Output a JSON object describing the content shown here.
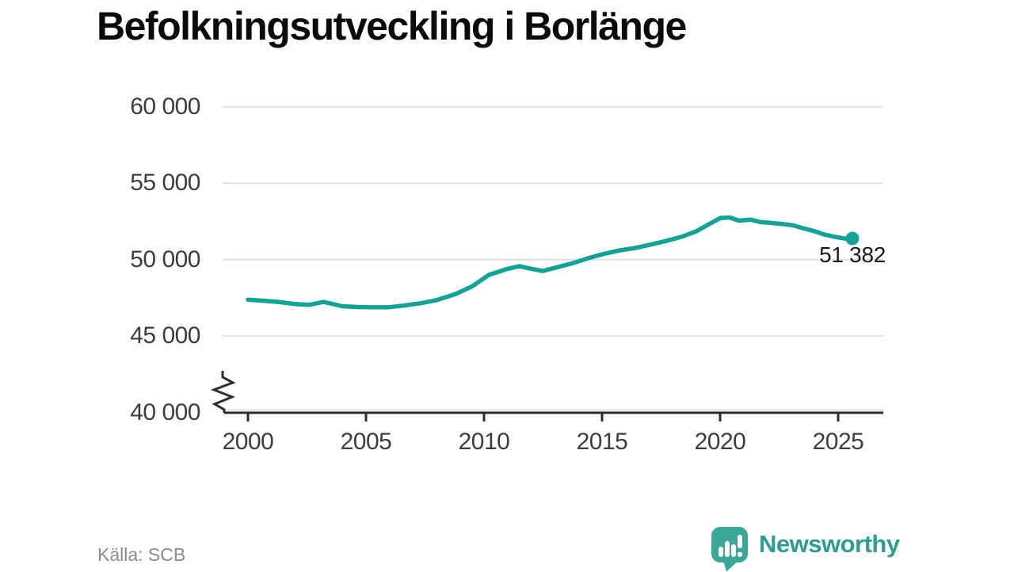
{
  "title": "Befolkningsutveckling i Borlänge",
  "source": "Källa: SCB",
  "branding": {
    "name": "Newsworthy",
    "icon": "newsworthy-bubble-barchart-icon",
    "icon_color": "#3aa79a",
    "text_color": "#2d9c91"
  },
  "colors": {
    "line": "#13a296",
    "grid": "#e1e1e1",
    "axis": "#2d2d2d",
    "tick_label": "#3d3d3d",
    "title": "#0b0b0b",
    "annotation": "#1a1a1a",
    "source": "#8b8b8b",
    "background": "#ffffff"
  },
  "chart_data": {
    "type": "line",
    "title": "Befolkningsutveckling i Borlänge",
    "xlabel": "",
    "ylabel": "",
    "legend": "none",
    "grid": "horizontal",
    "axis_break": true,
    "xlim": [
      1999,
      2027
    ],
    "ylim": [
      40000,
      60000
    ],
    "x_ticks": [
      2000,
      2005,
      2010,
      2015,
      2020,
      2025
    ],
    "y_ticks": [
      "60 000",
      "55 000",
      "50 000",
      "45 000",
      "40 000"
    ],
    "y_tick_values": [
      60000,
      55000,
      50000,
      45000,
      40000
    ],
    "x": [
      2000,
      2000.7,
      2001.3,
      2002,
      2002.6,
      2003.2,
      2004,
      2004.6,
      2005.3,
      2006,
      2006.6,
      2007.3,
      2008,
      2008.8,
      2009.5,
      2010.2,
      2011,
      2011.5,
      2012,
      2012.5,
      2013.1,
      2013.7,
      2014.4,
      2015,
      2015.7,
      2016.4,
      2017,
      2017.7,
      2018.4,
      2019,
      2019.6,
      2020,
      2020.4,
      2020.8,
      2021.3,
      2021.7,
      2022.1,
      2022.6,
      2023.1,
      2023.5,
      2024,
      2024.4,
      2024.9,
      2025.2,
      2025.4,
      2025.6
    ],
    "values": [
      47380,
      47300,
      47230,
      47090,
      47040,
      47230,
      46950,
      46900,
      46880,
      46890,
      46990,
      47140,
      47350,
      47750,
      48250,
      49000,
      49400,
      49570,
      49400,
      49260,
      49500,
      49740,
      50090,
      50350,
      50590,
      50760,
      50960,
      51220,
      51510,
      51860,
      52380,
      52720,
      52760,
      52550,
      52620,
      52460,
      52410,
      52340,
      52240,
      52060,
      51860,
      51650,
      51480,
      51400,
      51350,
      51382
    ],
    "end_value": 51382,
    "end_label": "51 382"
  }
}
